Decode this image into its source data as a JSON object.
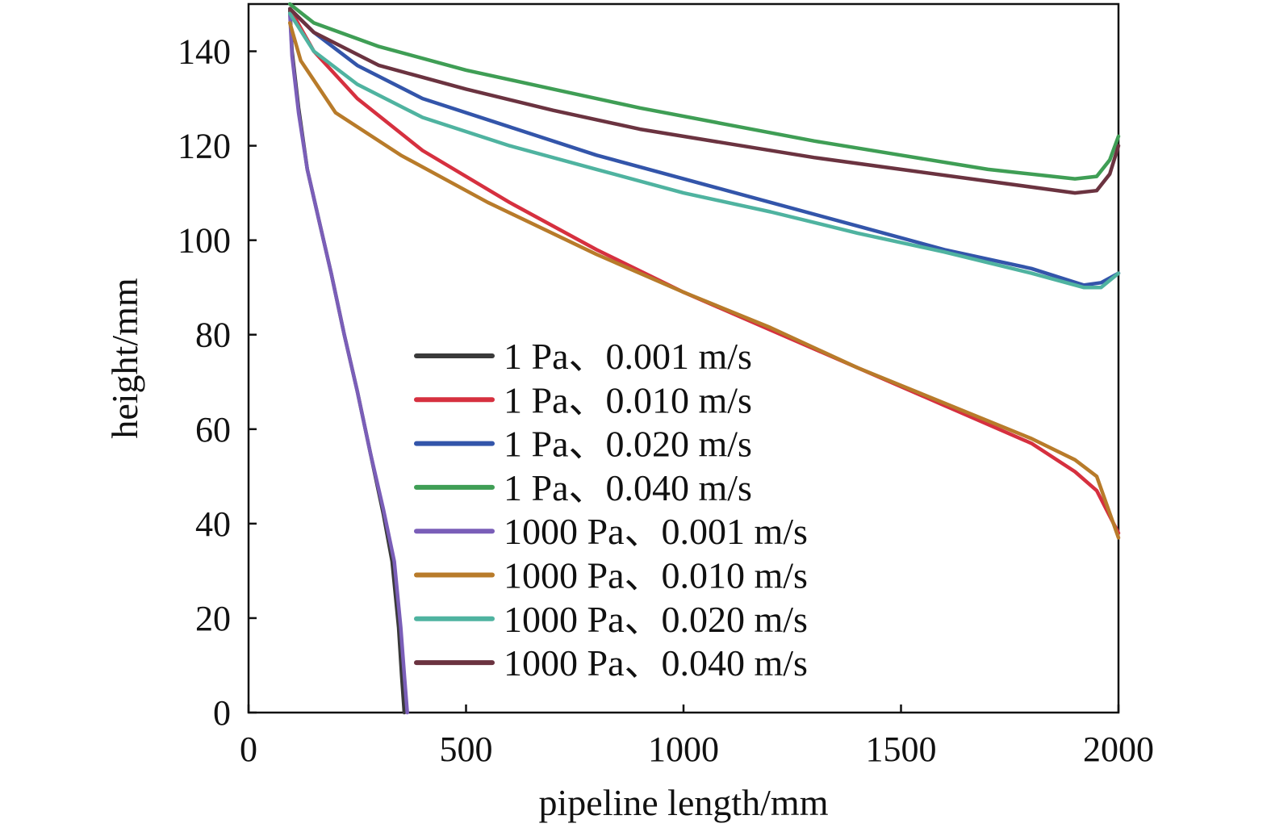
{
  "chart_data": {
    "type": "line",
    "xlabel": "pipeline length/mm",
    "ylabel": "height/mm",
    "xlim": [
      0,
      2000
    ],
    "ylim": [
      0,
      150
    ],
    "x_ticks": [
      "0",
      "500",
      "1000",
      "1500",
      "2000"
    ],
    "y_ticks": [
      "0",
      "20",
      "40",
      "60",
      "80",
      "100",
      "120",
      "140"
    ],
    "grid": false,
    "legend_position": "center",
    "series": [
      {
        "name": "1 Pa、0.001 m/s",
        "color": "#3a3a3a",
        "points": [
          [
            95,
            149
          ],
          [
            100,
            140
          ],
          [
            115,
            128
          ],
          [
            135,
            115
          ],
          [
            160,
            105
          ],
          [
            190,
            93
          ],
          [
            220,
            80
          ],
          [
            250,
            68
          ],
          [
            280,
            55
          ],
          [
            310,
            42
          ],
          [
            330,
            32
          ],
          [
            345,
            18
          ],
          [
            352,
            8
          ],
          [
            358,
            0
          ]
        ]
      },
      {
        "name": "1 Pa、0.010 m/s",
        "color": "#d6303f",
        "points": [
          [
            95,
            149
          ],
          [
            150,
            140
          ],
          [
            250,
            130
          ],
          [
            400,
            119
          ],
          [
            600,
            108
          ],
          [
            800,
            98
          ],
          [
            1000,
            89
          ],
          [
            1200,
            81
          ],
          [
            1400,
            73
          ],
          [
            1600,
            65
          ],
          [
            1800,
            57
          ],
          [
            1900,
            51
          ],
          [
            1950,
            47
          ],
          [
            2000,
            38
          ]
        ]
      },
      {
        "name": "1 Pa、0.020 m/s",
        "color": "#3355aa",
        "points": [
          [
            95,
            149
          ],
          [
            150,
            144
          ],
          [
            250,
            137
          ],
          [
            400,
            130
          ],
          [
            600,
            124
          ],
          [
            800,
            118
          ],
          [
            1000,
            113
          ],
          [
            1200,
            108
          ],
          [
            1400,
            103
          ],
          [
            1600,
            98
          ],
          [
            1800,
            94
          ],
          [
            1920,
            90.5
          ],
          [
            1960,
            91
          ],
          [
            2000,
            93
          ]
        ]
      },
      {
        "name": "1 Pa、0.040 m/s",
        "color": "#3f9e55",
        "points": [
          [
            95,
            150
          ],
          [
            150,
            146
          ],
          [
            300,
            141
          ],
          [
            500,
            136
          ],
          [
            700,
            132
          ],
          [
            900,
            128
          ],
          [
            1100,
            124.5
          ],
          [
            1300,
            121
          ],
          [
            1500,
            118
          ],
          [
            1700,
            115
          ],
          [
            1900,
            113
          ],
          [
            1950,
            113.5
          ],
          [
            1980,
            117
          ],
          [
            2000,
            122
          ]
        ]
      },
      {
        "name": "1000 Pa、0.001 m/s",
        "color": "#7a5eb8",
        "points": [
          [
            95,
            148
          ],
          [
            100,
            139
          ],
          [
            115,
            127
          ],
          [
            135,
            115
          ],
          [
            160,
            105
          ],
          [
            190,
            93
          ],
          [
            220,
            80
          ],
          [
            250,
            68
          ],
          [
            280,
            55
          ],
          [
            310,
            43
          ],
          [
            335,
            32
          ],
          [
            350,
            18
          ],
          [
            358,
            8
          ],
          [
            365,
            0
          ]
        ]
      },
      {
        "name": "1000 Pa、0.010 m/s",
        "color": "#b87b2a",
        "points": [
          [
            95,
            146
          ],
          [
            120,
            138
          ],
          [
            200,
            127
          ],
          [
            350,
            118
          ],
          [
            550,
            108
          ],
          [
            800,
            97
          ],
          [
            1000,
            89
          ],
          [
            1200,
            81.5
          ],
          [
            1400,
            73
          ],
          [
            1600,
            65.5
          ],
          [
            1800,
            58
          ],
          [
            1900,
            53.5
          ],
          [
            1950,
            50
          ],
          [
            2000,
            37
          ]
        ]
      },
      {
        "name": "1000 Pa、0.020 m/s",
        "color": "#4fb3a0",
        "points": [
          [
            95,
            148
          ],
          [
            150,
            140
          ],
          [
            250,
            133
          ],
          [
            400,
            126
          ],
          [
            600,
            120
          ],
          [
            800,
            115
          ],
          [
            1000,
            110
          ],
          [
            1200,
            106
          ],
          [
            1400,
            101.5
          ],
          [
            1600,
            97.5
          ],
          [
            1800,
            93
          ],
          [
            1920,
            90
          ],
          [
            1960,
            90
          ],
          [
            2000,
            93
          ]
        ]
      },
      {
        "name": "1000 Pa、0.040 m/s",
        "color": "#6b3340",
        "points": [
          [
            95,
            149
          ],
          [
            150,
            144
          ],
          [
            300,
            137
          ],
          [
            500,
            132
          ],
          [
            700,
            127.5
          ],
          [
            900,
            123.5
          ],
          [
            1100,
            120.5
          ],
          [
            1300,
            117.5
          ],
          [
            1500,
            115
          ],
          [
            1700,
            112.5
          ],
          [
            1900,
            110
          ],
          [
            1950,
            110.5
          ],
          [
            1980,
            114
          ],
          [
            2000,
            120
          ]
        ]
      }
    ]
  }
}
